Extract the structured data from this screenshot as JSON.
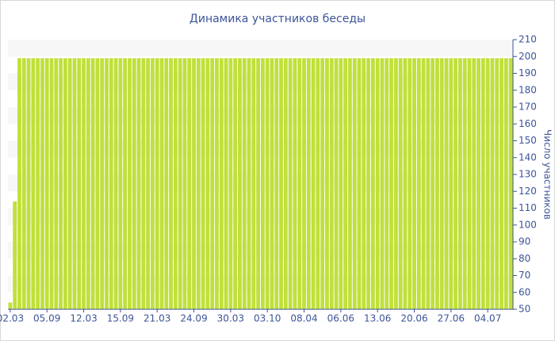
{
  "chart_data": {
    "type": "bar",
    "title": "Динамика участников беседы",
    "y_label": "Число участников",
    "categories": [
      "02.03",
      null,
      null,
      null,
      null,
      null,
      null,
      null,
      "05.09",
      null,
      null,
      null,
      null,
      null,
      null,
      null,
      "12.03",
      null,
      null,
      null,
      null,
      null,
      null,
      null,
      "15.09",
      null,
      null,
      null,
      null,
      null,
      null,
      null,
      "21.03",
      null,
      null,
      null,
      null,
      null,
      null,
      null,
      "24.09",
      null,
      null,
      null,
      null,
      null,
      null,
      null,
      "30.03",
      null,
      null,
      null,
      null,
      null,
      null,
      null,
      "03.10",
      null,
      null,
      null,
      null,
      null,
      null,
      null,
      "08.04",
      null,
      null,
      null,
      null,
      null,
      null,
      null,
      "06.06",
      null,
      null,
      null,
      null,
      null,
      null,
      null,
      "13.06",
      null,
      null,
      null,
      null,
      null,
      null,
      null,
      "20.06",
      null,
      null,
      null,
      null,
      null,
      null,
      null,
      "27.06",
      null,
      null,
      null,
      null,
      null,
      null,
      null,
      "04.07",
      null,
      null,
      null,
      null,
      null
    ],
    "values": [
      54,
      114,
      199,
      199,
      199,
      199,
      199,
      199,
      199,
      199,
      199,
      199,
      199,
      199,
      199,
      199,
      199,
      199,
      199,
      199,
      199,
      199,
      199,
      199,
      199,
      199,
      199,
      199,
      199,
      199,
      199,
      199,
      199,
      199,
      199,
      199,
      199,
      199,
      199,
      199,
      199,
      199,
      199,
      199,
      199,
      199,
      199,
      199,
      199,
      199,
      199,
      199,
      199,
      199,
      199,
      199,
      199,
      199,
      199,
      199,
      199,
      199,
      199,
      199,
      199,
      199,
      199,
      199,
      199,
      199,
      199,
      199,
      199,
      199,
      199,
      199,
      199,
      199,
      199,
      199,
      199,
      199,
      199,
      199,
      199,
      199,
      199,
      199,
      199,
      199,
      199,
      199,
      199,
      199,
      199,
      199,
      199,
      199,
      199,
      199,
      199,
      199,
      199,
      199,
      199,
      199,
      199,
      199,
      199,
      199
    ],
    "color": "#c0e03b",
    "ylim": [
      50,
      210
    ],
    "yticks": [
      50,
      60,
      70,
      80,
      90,
      100,
      110,
      120,
      130,
      140,
      150,
      160,
      170,
      180,
      190,
      200,
      210
    ],
    "grid": true
  }
}
